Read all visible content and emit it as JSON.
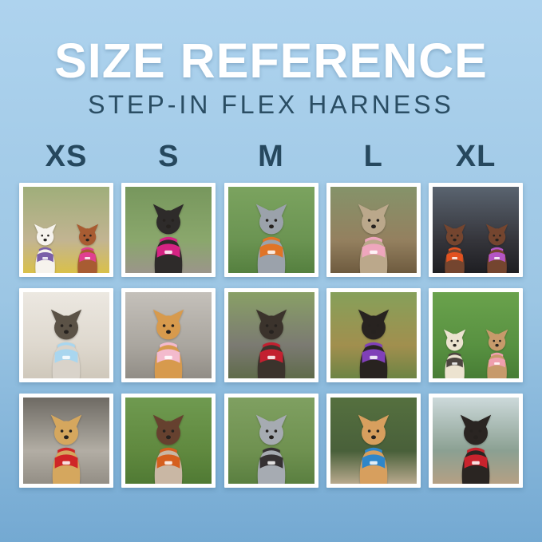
{
  "header": {
    "title": "SIZE REFERENCE",
    "subtitle": "STEP-IN FLEX HARNESS"
  },
  "sizes": [
    "XS",
    "S",
    "M",
    "L",
    "XL"
  ],
  "colors": {
    "bg_top": "#aed3ee",
    "bg_mid": "#9cc6e4",
    "bg_bottom": "#74a9d2",
    "title": "#ffffff",
    "subtitle": "#2a4d63",
    "size_label": "#26485e",
    "frame": "#ffffff"
  },
  "grid": {
    "rows": 3,
    "cols": 5,
    "cells": [
      {
        "size": "XS",
        "row": 1,
        "alt": "White bichon in purple harness and brown poodle in pink harness on a colorful blanket",
        "scene": [
          "#9fae7a",
          "#c2b492",
          "#d9c04a"
        ],
        "dogs": [
          {
            "body": "#f6f3ed",
            "harness": "#7a5fa8"
          },
          {
            "body": "#a85c32",
            "harness": "#e03f90"
          }
        ]
      },
      {
        "size": "S",
        "row": 1,
        "alt": "Black miniature pinscher in a hot pink harness on a rock with green foliage",
        "scene": [
          "#77975d",
          "#8aa76c",
          "#9b958a"
        ],
        "dogs": [
          {
            "body": "#2e2b2a",
            "harness": "#d62383"
          }
        ]
      },
      {
        "size": "M",
        "row": 1,
        "alt": "Blue merle puppy in an orange harness with orange leash on grass",
        "scene": [
          "#7ba35f",
          "#6b9452",
          "#55803f"
        ],
        "dogs": [
          {
            "body": "#9ba2ab",
            "harness": "#e07427"
          }
        ]
      },
      {
        "size": "L",
        "row": 1,
        "alt": "Brindle whippet sitting in a pink harness on a dirt park path",
        "scene": [
          "#85936a",
          "#94805f",
          "#6e5b3f"
        ],
        "dogs": [
          {
            "body": "#bba88b",
            "harness": "#eea6bd"
          }
        ]
      },
      {
        "size": "XL",
        "row": 1,
        "alt": "Two German shorthaired pointers in orange-red and purple harnesses",
        "scene": [
          "#5a6470",
          "#35353b",
          "#1e1e22"
        ],
        "dogs": [
          {
            "body": "#74452f",
            "harness": "#e25220"
          },
          {
            "body": "#74452f",
            "harness": "#b455c4"
          }
        ]
      },
      {
        "size": "XS",
        "row": 2,
        "alt": "Grey and white shih tzu on a white bed in a light blue harness",
        "scene": [
          "#ece8e1",
          "#ded8ce",
          "#cfc8bb"
        ],
        "dogs": [
          {
            "body": "#d9d3ca",
            "head": "#5b5246",
            "harness": "#a9d6ef"
          }
        ]
      },
      {
        "size": "S",
        "row": 2,
        "alt": "Golden retriever puppy in a light pink harness on pavement",
        "scene": [
          "#c4c0ba",
          "#aaa69f",
          "#918d86"
        ],
        "dogs": [
          {
            "body": "#d79a4d",
            "harness": "#f3bacd"
          }
        ]
      },
      {
        "size": "M",
        "row": 2,
        "alt": "Black-and-tan terrier mix in a red harness on a park bench",
        "scene": [
          "#89a066",
          "#7b7a72",
          "#5f6b4a"
        ],
        "dogs": [
          {
            "body": "#3b332c",
            "harness": "#c32030"
          }
        ]
      },
      {
        "size": "L",
        "row": 2,
        "alt": "Black puppy in a purple harness on grass with autumn leaves",
        "scene": [
          "#86a05a",
          "#a18f4e",
          "#6d8444"
        ],
        "dogs": [
          {
            "body": "#282320",
            "harness": "#8040b8"
          }
        ]
      },
      {
        "size": "XL",
        "row": 2,
        "alt": "Cream doodle in a dark harness and fawn French bulldog in a pink harness on grass",
        "scene": [
          "#6aa24c",
          "#589141",
          "#477d35"
        ],
        "dogs": [
          {
            "body": "#ece3d0",
            "harness": "#4d4540"
          },
          {
            "body": "#c79a6b",
            "harness": "#ef9fae"
          }
        ]
      },
      {
        "size": "XS",
        "row": 3,
        "alt": "Tan yorkie mix in a red harness on a grey shag rug",
        "scene": [
          "#6e6a64",
          "#b2ada4",
          "#938e85"
        ],
        "dogs": [
          {
            "body": "#d5a75e",
            "harness": "#cf2527"
          }
        ]
      },
      {
        "size": "S",
        "row": 3,
        "alt": "Liver-and-white pointer puppy lying on grass in an orange harness",
        "scene": [
          "#6f9a50",
          "#60893f",
          "#507a34"
        ],
        "dogs": [
          {
            "body": "#c9b7a4",
            "head": "#66412f",
            "harness": "#d55f1e"
          }
        ]
      },
      {
        "size": "M",
        "row": 3,
        "alt": "Blue merle border collie in a black harness in a park",
        "scene": [
          "#7fa061",
          "#6f9150",
          "#5a7f40"
        ],
        "dogs": [
          {
            "body": "#a6abb2",
            "harness": "#353133"
          }
        ]
      },
      {
        "size": "L",
        "row": 3,
        "alt": "Apricot doodle in a blue harness with blue leash sitting on a rock",
        "scene": [
          "#55703f",
          "#49603a",
          "#b8a98d"
        ],
        "dogs": [
          {
            "body": "#d79f5e",
            "harness": "#2f86c9"
          }
        ]
      },
      {
        "size": "XL",
        "row": 3,
        "alt": "Black-and-tan dog in a red harness with red leash on a mountain overlook",
        "scene": [
          "#ccd9da",
          "#8ba092",
          "#b5a084"
        ],
        "dogs": [
          {
            "body": "#2a2522",
            "harness": "#c9232d"
          }
        ]
      }
    ]
  }
}
